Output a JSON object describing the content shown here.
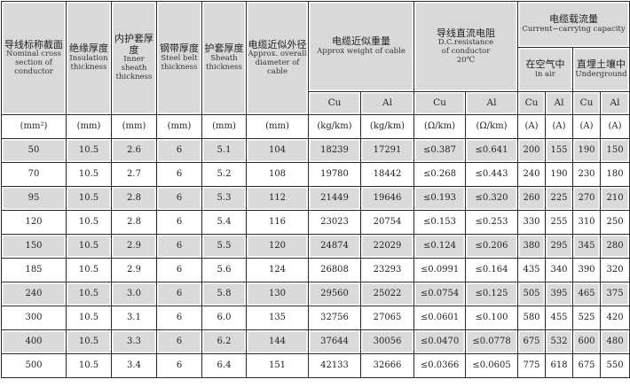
{
  "headers": {
    "section": {
      "zh": "导线标称截面",
      "en": "Nominal cross section of conductor",
      "unit": "(mm²)"
    },
    "insulation": {
      "zh": "绝缘厚度",
      "en": "Insulation thickness",
      "unit": "(mm)"
    },
    "inner_sheath": {
      "zh": "内护套厚度",
      "en": "Inner sheath thickness",
      "unit": "(mm)"
    },
    "steel_belt": {
      "zh": "钢带厚度",
      "en": "Steel belt thickness",
      "unit": "(mm)"
    },
    "sheath": {
      "zh": "护套厚度",
      "en": "Sheath thickness",
      "unit": "(mm)"
    },
    "diameter": {
      "zh": "电缆近似外径",
      "en": "Approx. overall diameter of cable",
      "unit": "(mm)"
    },
    "weight": {
      "zh": "电缆近似重量",
      "en": "Approx weight of cable",
      "cu": "Cu",
      "al": "Al",
      "unit": "(kg/km)"
    },
    "resistance": {
      "zh": "导线直流电阻",
      "en1": "D.C.resistance",
      "en2": "of conductor",
      "en3": "20℃",
      "cu": "Cu",
      "al": "Al",
      "unit": "(Ω/km)"
    },
    "current": {
      "zh": "电缆载流量",
      "en": "Current−carrying capacity",
      "air": {
        "zh": "在空气中",
        "en": "in air"
      },
      "ground": {
        "zh": "直埋土壤中",
        "en": "Underground"
      },
      "cu": "Cu",
      "al": "Al",
      "unit": "(A)"
    }
  },
  "rows": [
    [
      "50",
      "10.5",
      "2.6",
      "6",
      "5.1",
      "104",
      "18239",
      "17291",
      "≤0.387",
      "≤0.641",
      "200",
      "155",
      "190",
      "150"
    ],
    [
      "70",
      "10.5",
      "2.7",
      "6",
      "5.2",
      "108",
      "19780",
      "18442",
      "≤0.268",
      "≤0.443",
      "240",
      "190",
      "230",
      "180"
    ],
    [
      "95",
      "10.5",
      "2.8",
      "6",
      "5.3",
      "112",
      "21449",
      "19646",
      "≤0.193",
      "≤0.320",
      "260",
      "225",
      "270",
      "210"
    ],
    [
      "120",
      "10.5",
      "2.8",
      "6",
      "5.4",
      "116",
      "23023",
      "20754",
      "≤0.153",
      "≤0.253",
      "330",
      "255",
      "310",
      "250"
    ],
    [
      "150",
      "10.5",
      "2.9",
      "6",
      "5.5",
      "120",
      "24874",
      "22029",
      "≤0.124",
      "≤0.206",
      "380",
      "295",
      "345",
      "280"
    ],
    [
      "185",
      "10.5",
      "2.9",
      "6",
      "5.6",
      "124",
      "26808",
      "23293",
      "≤0.0991",
      "≤0.164",
      "435",
      "340",
      "390",
      "320"
    ],
    [
      "240",
      "10.5",
      "3.0",
      "6",
      "5.8",
      "130",
      "29560",
      "25022",
      "≤0.0754",
      "≤0.125",
      "505",
      "395",
      "465",
      "375"
    ],
    [
      "300",
      "10.5",
      "3.1",
      "6",
      "6.0",
      "135",
      "32756",
      "27065",
      "≤0.0601",
      "≤0.100",
      "580",
      "455",
      "525",
      "420"
    ],
    [
      "400",
      "10.5",
      "3.3",
      "6",
      "6.2",
      "144",
      "37644",
      "30056",
      "≤0.0470",
      "≤0.0778",
      "675",
      "532",
      "600",
      "480"
    ],
    [
      "500",
      "10.5",
      "3.4",
      "6",
      "6.4",
      "151",
      "42133",
      "32666",
      "≤0.0366",
      "≤0.0605",
      "775",
      "618",
      "675",
      "550"
    ]
  ],
  "colors": {
    "header_bg": "#d9d9d9",
    "stripe_bg": "#dadada",
    "border": "#2a2a2a"
  }
}
